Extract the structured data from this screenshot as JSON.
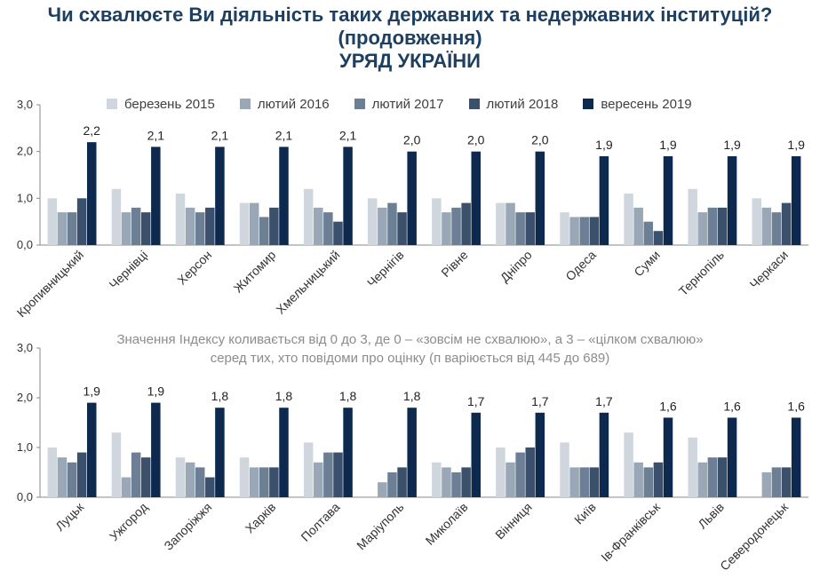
{
  "header": {
    "title_line1": "Чи схвалюєте Ви діяльність таких державних та недержавних інституцій?",
    "title_line2": "(продовження)",
    "title_line3": "УРЯД УКРАЇНИ"
  },
  "note": {
    "line1": "Значення Індексу коливається від 0 до 3, де 0 – «зовсім не схвалюю», а 3 – «цілком схвалюю»",
    "line2": "серед тих, хто повідоми про оцінку (п варіюється від 445 до 689)"
  },
  "chart_data": [
    {
      "type": "bar",
      "ylim": [
        0,
        3
      ],
      "yticks": [
        "0,0",
        "1,0",
        "2,0",
        "3,0"
      ],
      "legend_placement": "top",
      "categories": [
        "Кропивницький",
        "Чернівці",
        "Херсон",
        "Житомир",
        "Хмельницький",
        "Чернігів",
        "Рівне",
        "Дніпро",
        "Одеса",
        "Суми",
        "Тернопіль",
        "Черкаси"
      ],
      "series": [
        {
          "name": "березень 2015",
          "color": "#cfd6de",
          "values": [
            1.0,
            1.2,
            1.1,
            0.9,
            1.2,
            1.0,
            1.0,
            0.9,
            0.7,
            1.1,
            1.2,
            1.0
          ]
        },
        {
          "name": "лютий 2016",
          "color": "#9aa7b6",
          "values": [
            0.7,
            0.7,
            0.8,
            0.9,
            0.8,
            0.8,
            0.7,
            0.9,
            0.6,
            0.8,
            0.7,
            0.8
          ]
        },
        {
          "name": "лютий 2017",
          "color": "#6c7f95",
          "values": [
            0.7,
            0.8,
            0.7,
            0.6,
            0.7,
            0.9,
            0.8,
            0.7,
            0.6,
            0.5,
            0.8,
            0.7
          ]
        },
        {
          "name": "лютий 2018",
          "color": "#3a506b",
          "values": [
            1.0,
            0.7,
            0.8,
            0.8,
            0.5,
            0.7,
            0.9,
            0.7,
            0.6,
            0.3,
            0.8,
            0.9
          ]
        },
        {
          "name": "вересень 2019",
          "color": "#0d2a4e",
          "values": [
            2.2,
            2.1,
            2.1,
            2.1,
            2.1,
            2.0,
            2.0,
            2.0,
            1.9,
            1.9,
            1.9,
            1.9
          ]
        }
      ],
      "data_labels": [
        "2,2",
        "2,1",
        "2,1",
        "2,1",
        "2,1",
        "2,0",
        "2,0",
        "2,0",
        "1,9",
        "1,9",
        "1,9",
        "1,9"
      ]
    },
    {
      "type": "bar",
      "ylim": [
        0,
        3
      ],
      "yticks": [
        "0,0",
        "1,0",
        "2,0",
        "3,0"
      ],
      "categories": [
        "Луцьк",
        "Ужгород",
        "Запоріжжя",
        "Харків",
        "Полтава",
        "Маріуполь",
        "Миколаїв",
        "Вінниця",
        "Київ",
        "Ів-Франківськ",
        "Львів",
        "Северодонецьк"
      ],
      "series": [
        {
          "name": "березень 2015",
          "color": "#cfd6de",
          "values": [
            1.0,
            1.3,
            0.8,
            0.8,
            1.1,
            null,
            0.7,
            1.0,
            1.1,
            1.3,
            1.2,
            null
          ]
        },
        {
          "name": "лютий 2016",
          "color": "#9aa7b6",
          "values": [
            0.8,
            0.4,
            0.7,
            0.6,
            0.7,
            0.3,
            0.6,
            0.7,
            0.6,
            0.7,
            0.7,
            0.5
          ]
        },
        {
          "name": "лютий 2017",
          "color": "#6c7f95",
          "values": [
            0.7,
            0.9,
            0.6,
            0.6,
            0.9,
            0.5,
            0.5,
            0.9,
            0.6,
            0.6,
            0.8,
            0.6
          ]
        },
        {
          "name": "лютий 2018",
          "color": "#3a506b",
          "values": [
            0.9,
            0.8,
            0.4,
            0.6,
            0.9,
            0.6,
            0.6,
            1.0,
            0.6,
            0.7,
            0.8,
            0.6
          ]
        },
        {
          "name": "вересень 2019",
          "color": "#0d2a4e",
          "values": [
            1.9,
            1.9,
            1.8,
            1.8,
            1.8,
            1.8,
            1.7,
            1.7,
            1.7,
            1.6,
            1.6,
            1.6
          ]
        }
      ],
      "data_labels": [
        "1,9",
        "1,9",
        "1,8",
        "1,8",
        "1,8",
        "1,8",
        "1,7",
        "1,7",
        "1,7",
        "1,6",
        "1,6",
        "1,6"
      ]
    }
  ]
}
